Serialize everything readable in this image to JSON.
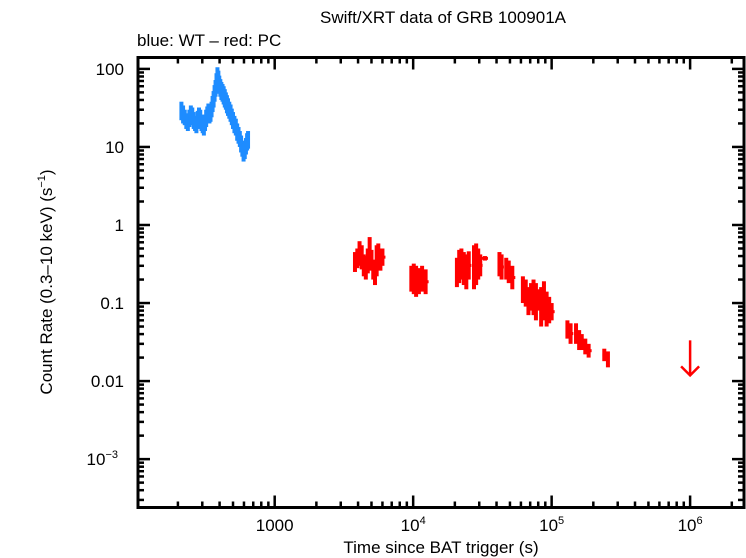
{
  "chart_data": {
    "type": "scatter",
    "title": "Swift/XRT data of GRB 100901A",
    "subtitle": "blue: WT – red: PC",
    "xlabel": "Time since BAT trigger (s)",
    "ylabel_main": "Count Rate (0.3–10 keV) (s",
    "ylabel_sup": "−1",
    "ylabel_close": ")",
    "xscale": "log",
    "yscale": "log",
    "xlim": [
      103,
      2450000
    ],
    "ylim": [
      0.00024,
      140
    ],
    "grid": false,
    "legend": "none",
    "x_ticks": [
      {
        "value": 1000,
        "base": "1000",
        "exp": ""
      },
      {
        "value": 10000,
        "base": "10",
        "exp": "4"
      },
      {
        "value": 100000,
        "base": "10",
        "exp": "5"
      },
      {
        "value": 1000000,
        "base": "10",
        "exp": "6"
      }
    ],
    "y_ticks": [
      {
        "value": 100,
        "base": "100",
        "exp": ""
      },
      {
        "value": 10,
        "base": "10",
        "exp": ""
      },
      {
        "value": 1,
        "base": "1",
        "exp": ""
      },
      {
        "value": 0.1,
        "base": "0.1",
        "exp": ""
      },
      {
        "value": 0.01,
        "base": "0.01",
        "exp": ""
      },
      {
        "value": 0.001,
        "base": "10",
        "exp": "−3"
      }
    ],
    "series": [
      {
        "name": "WT",
        "color": "#1e8cff",
        "points": [
          {
            "t": 212,
            "lo": 22,
            "hi": 38
          },
          {
            "t": 218,
            "lo": 20,
            "hi": 34
          },
          {
            "t": 224,
            "lo": 19,
            "hi": 30
          },
          {
            "t": 230,
            "lo": 17,
            "hi": 27
          },
          {
            "t": 236,
            "lo": 16,
            "hi": 26
          },
          {
            "t": 242,
            "lo": 18,
            "hi": 30
          },
          {
            "t": 248,
            "lo": 20,
            "hi": 34
          },
          {
            "t": 254,
            "lo": 19,
            "hi": 32
          },
          {
            "t": 260,
            "lo": 17,
            "hi": 28
          },
          {
            "t": 266,
            "lo": 16,
            "hi": 25
          },
          {
            "t": 272,
            "lo": 15,
            "hi": 24
          },
          {
            "t": 278,
            "lo": 17,
            "hi": 29
          },
          {
            "t": 284,
            "lo": 19,
            "hi": 32
          },
          {
            "t": 290,
            "lo": 18,
            "hi": 30
          },
          {
            "t": 296,
            "lo": 16,
            "hi": 26
          },
          {
            "t": 302,
            "lo": 15,
            "hi": 24
          },
          {
            "t": 308,
            "lo": 14,
            "hi": 23
          },
          {
            "t": 314,
            "lo": 16,
            "hi": 26
          },
          {
            "t": 320,
            "lo": 18,
            "hi": 30
          },
          {
            "t": 326,
            "lo": 20,
            "hi": 33
          },
          {
            "t": 332,
            "lo": 22,
            "hi": 36
          },
          {
            "t": 338,
            "lo": 20,
            "hi": 32
          },
          {
            "t": 344,
            "lo": 21,
            "hi": 34
          },
          {
            "t": 350,
            "lo": 24,
            "hi": 38
          },
          {
            "t": 356,
            "lo": 28,
            "hi": 45
          },
          {
            "t": 362,
            "lo": 32,
            "hi": 52
          },
          {
            "t": 368,
            "lo": 38,
            "hi": 62
          },
          {
            "t": 374,
            "lo": 44,
            "hi": 72
          },
          {
            "t": 380,
            "lo": 52,
            "hi": 88
          },
          {
            "t": 386,
            "lo": 60,
            "hi": 105
          },
          {
            "t": 392,
            "lo": 55,
            "hi": 95
          },
          {
            "t": 398,
            "lo": 48,
            "hi": 82
          },
          {
            "t": 405,
            "lo": 44,
            "hi": 74
          },
          {
            "t": 412,
            "lo": 40,
            "hi": 68
          },
          {
            "t": 420,
            "lo": 38,
            "hi": 64
          },
          {
            "t": 428,
            "lo": 35,
            "hi": 60
          },
          {
            "t": 436,
            "lo": 32,
            "hi": 55
          },
          {
            "t": 444,
            "lo": 30,
            "hi": 50
          },
          {
            "t": 452,
            "lo": 27,
            "hi": 46
          },
          {
            "t": 460,
            "lo": 25,
            "hi": 42
          },
          {
            "t": 470,
            "lo": 23,
            "hi": 38
          },
          {
            "t": 480,
            "lo": 21,
            "hi": 35
          },
          {
            "t": 490,
            "lo": 19,
            "hi": 31
          },
          {
            "t": 500,
            "lo": 17,
            "hi": 28
          },
          {
            "t": 512,
            "lo": 15,
            "hi": 25
          },
          {
            "t": 524,
            "lo": 14,
            "hi": 23
          },
          {
            "t": 536,
            "lo": 12,
            "hi": 20
          },
          {
            "t": 548,
            "lo": 11,
            "hi": 18
          },
          {
            "t": 560,
            "lo": 10,
            "hi": 16
          },
          {
            "t": 572,
            "lo": 8.5,
            "hi": 14
          },
          {
            "t": 584,
            "lo": 7.5,
            "hi": 12
          },
          {
            "t": 596,
            "lo": 6.5,
            "hi": 11
          },
          {
            "t": 608,
            "lo": 7,
            "hi": 12
          },
          {
            "t": 620,
            "lo": 8,
            "hi": 13
          },
          {
            "t": 632,
            "lo": 9,
            "hi": 15
          },
          {
            "t": 642,
            "lo": 9.5,
            "hi": 16
          }
        ]
      },
      {
        "name": "PC",
        "color": "#ff0000",
        "points": [
          {
            "t": 3800,
            "lo": 0.25,
            "hi": 0.45
          },
          {
            "t": 3950,
            "lo": 0.28,
            "hi": 0.5
          },
          {
            "t": 4100,
            "lo": 0.3,
            "hi": 0.62
          },
          {
            "t": 4250,
            "lo": 0.27,
            "hi": 0.55
          },
          {
            "t": 4400,
            "lo": 0.22,
            "hi": 0.42
          },
          {
            "t": 4550,
            "lo": 0.2,
            "hi": 0.4
          },
          {
            "t": 4700,
            "lo": 0.24,
            "hi": 0.5
          },
          {
            "t": 4850,
            "lo": 0.3,
            "hi": 0.7
          },
          {
            "t": 5000,
            "lo": 0.26,
            "hi": 0.48
          },
          {
            "t": 5150,
            "lo": 0.2,
            "hi": 0.36
          },
          {
            "t": 5300,
            "lo": 0.17,
            "hi": 0.32
          },
          {
            "t": 5450,
            "lo": 0.22,
            "hi": 0.55
          },
          {
            "t": 5600,
            "lo": 0.3,
            "hi": 0.58
          },
          {
            "t": 5800,
            "lo": 0.26,
            "hi": 0.5
          },
          {
            "t": 6000,
            "lo": 0.3,
            "hi": 0.5
          },
          {
            "t": 9700,
            "lo": 0.14,
            "hi": 0.3
          },
          {
            "t": 10100,
            "lo": 0.13,
            "hi": 0.32
          },
          {
            "t": 10500,
            "lo": 0.12,
            "hi": 0.3
          },
          {
            "t": 11000,
            "lo": 0.13,
            "hi": 0.28
          },
          {
            "t": 11600,
            "lo": 0.14,
            "hi": 0.3
          },
          {
            "t": 12300,
            "lo": 0.13,
            "hi": 0.27
          },
          {
            "t": 20700,
            "lo": 0.16,
            "hi": 0.38
          },
          {
            "t": 21500,
            "lo": 0.18,
            "hi": 0.48
          },
          {
            "t": 22300,
            "lo": 0.2,
            "hi": 0.5
          },
          {
            "t": 23200,
            "lo": 0.17,
            "hi": 0.45
          },
          {
            "t": 24200,
            "lo": 0.15,
            "hi": 0.42
          },
          {
            "t": 25200,
            "lo": 0.2,
            "hi": 0.46
          },
          {
            "t": 27500,
            "lo": 0.15,
            "hi": 0.55
          },
          {
            "t": 28500,
            "lo": 0.17,
            "hi": 0.58
          },
          {
            "t": 29500,
            "lo": 0.2,
            "hi": 0.5
          },
          {
            "t": 30500,
            "lo": 0.22,
            "hi": 0.42
          },
          {
            "t": 33000,
            "lo": 0.35,
            "hi": 0.4
          },
          {
            "t": 42000,
            "lo": 0.22,
            "hi": 0.45
          },
          {
            "t": 43500,
            "lo": 0.2,
            "hi": 0.42
          },
          {
            "t": 47000,
            "lo": 0.2,
            "hi": 0.38
          },
          {
            "t": 49000,
            "lo": 0.18,
            "hi": 0.35
          },
          {
            "t": 52000,
            "lo": 0.15,
            "hi": 0.3
          },
          {
            "t": 62000,
            "lo": 0.1,
            "hi": 0.22
          },
          {
            "t": 65000,
            "lo": 0.09,
            "hi": 0.2
          },
          {
            "t": 68000,
            "lo": 0.07,
            "hi": 0.16
          },
          {
            "t": 71000,
            "lo": 0.08,
            "hi": 0.18
          },
          {
            "t": 74000,
            "lo": 0.07,
            "hi": 0.2
          },
          {
            "t": 77000,
            "lo": 0.06,
            "hi": 0.18
          },
          {
            "t": 80000,
            "lo": 0.08,
            "hi": 0.15
          },
          {
            "t": 84000,
            "lo": 0.05,
            "hi": 0.16
          },
          {
            "t": 88000,
            "lo": 0.06,
            "hi": 0.19
          },
          {
            "t": 92000,
            "lo": 0.05,
            "hi": 0.14
          },
          {
            "t": 96000,
            "lo": 0.055,
            "hi": 0.12
          },
          {
            "t": 100000,
            "lo": 0.06,
            "hi": 0.1
          },
          {
            "t": 130000,
            "lo": 0.035,
            "hi": 0.06
          },
          {
            "t": 137000,
            "lo": 0.03,
            "hi": 0.055
          },
          {
            "t": 150000,
            "lo": 0.03,
            "hi": 0.055
          },
          {
            "t": 158000,
            "lo": 0.025,
            "hi": 0.045
          },
          {
            "t": 165000,
            "lo": 0.025,
            "hi": 0.04
          },
          {
            "t": 175000,
            "lo": 0.022,
            "hi": 0.035
          },
          {
            "t": 185000,
            "lo": 0.02,
            "hi": 0.03
          },
          {
            "t": 240000,
            "lo": 0.018,
            "hi": 0.026
          },
          {
            "t": 255000,
            "lo": 0.015,
            "hi": 0.024
          }
        ],
        "upper_limits": [
          {
            "t": 1000000,
            "value": 0.015
          }
        ]
      }
    ]
  }
}
